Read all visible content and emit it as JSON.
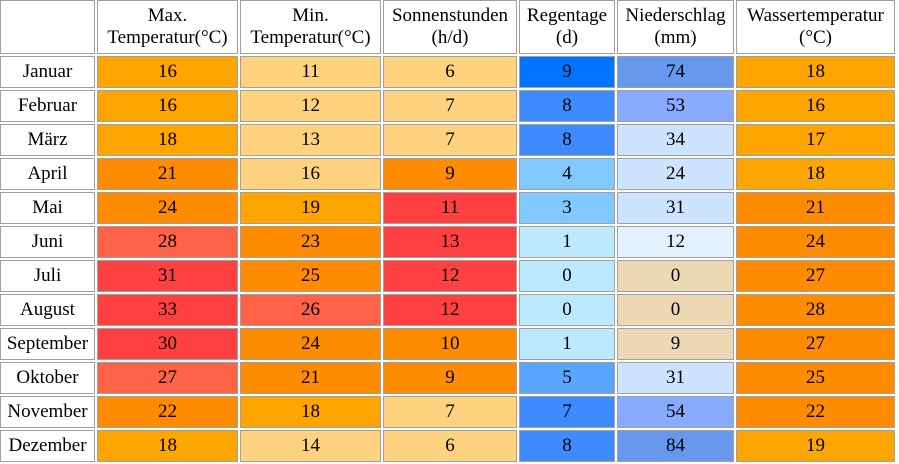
{
  "table": {
    "headers": [
      {
        "line1": "Max.",
        "line2": "Temperatur(°C)"
      },
      {
        "line1": "Min.",
        "line2": "Temperatur(°C)"
      },
      {
        "line1": "Sonnenstunden",
        "line2": "(h/d)"
      },
      {
        "line1": "Regentage",
        "line2": "(d)"
      },
      {
        "line1": "Niederschlag",
        "line2": "(mm)"
      },
      {
        "line1": "Wassertemperatur",
        "line2": "(°C)"
      }
    ],
    "rows": [
      {
        "month": "Januar",
        "cells": [
          {
            "v": "16",
            "c": "#ffa500"
          },
          {
            "v": "11",
            "c": "#ffd27f"
          },
          {
            "v": "6",
            "c": "#ffd27f"
          },
          {
            "v": "9",
            "c": "#0073ff"
          },
          {
            "v": "74",
            "c": "#6699ee"
          },
          {
            "v": "18",
            "c": "#ffa500"
          }
        ]
      },
      {
        "month": "Februar",
        "cells": [
          {
            "v": "16",
            "c": "#ffa500"
          },
          {
            "v": "12",
            "c": "#ffd27f"
          },
          {
            "v": "7",
            "c": "#ffd27f"
          },
          {
            "v": "8",
            "c": "#3d8bff"
          },
          {
            "v": "53",
            "c": "#88aaff"
          },
          {
            "v": "16",
            "c": "#ffa500"
          }
        ]
      },
      {
        "month": "März",
        "cells": [
          {
            "v": "18",
            "c": "#ffa500"
          },
          {
            "v": "13",
            "c": "#ffd27f"
          },
          {
            "v": "7",
            "c": "#ffd27f"
          },
          {
            "v": "8",
            "c": "#3d8bff"
          },
          {
            "v": "34",
            "c": "#cce4ff"
          },
          {
            "v": "17",
            "c": "#ffa500"
          }
        ]
      },
      {
        "month": "April",
        "cells": [
          {
            "v": "21",
            "c": "#ff8c00"
          },
          {
            "v": "16",
            "c": "#ffd27f"
          },
          {
            "v": "9",
            "c": "#ff8c00"
          },
          {
            "v": "4",
            "c": "#80c8ff"
          },
          {
            "v": "24",
            "c": "#cce4ff"
          },
          {
            "v": "18",
            "c": "#ffa500"
          }
        ]
      },
      {
        "month": "Mai",
        "cells": [
          {
            "v": "24",
            "c": "#ff8c00"
          },
          {
            "v": "19",
            "c": "#ffa500"
          },
          {
            "v": "11",
            "c": "#ff4040"
          },
          {
            "v": "3",
            "c": "#80c8ff"
          },
          {
            "v": "31",
            "c": "#cce4ff"
          },
          {
            "v": "21",
            "c": "#ff8c00"
          }
        ]
      },
      {
        "month": "Juni",
        "cells": [
          {
            "v": "28",
            "c": "#ff6347"
          },
          {
            "v": "23",
            "c": "#ff8c00"
          },
          {
            "v": "13",
            "c": "#ff4040"
          },
          {
            "v": "1",
            "c": "#bde9ff"
          },
          {
            "v": "12",
            "c": "#e3f1ff"
          },
          {
            "v": "24",
            "c": "#ff8c00"
          }
        ]
      },
      {
        "month": "Juli",
        "cells": [
          {
            "v": "31",
            "c": "#ff4040"
          },
          {
            "v": "25",
            "c": "#ff8c00"
          },
          {
            "v": "12",
            "c": "#ff4040"
          },
          {
            "v": "0",
            "c": "#bde9ff"
          },
          {
            "v": "0",
            "c": "#ecd8b4"
          },
          {
            "v": "27",
            "c": "#ff8c00"
          }
        ]
      },
      {
        "month": "August",
        "cells": [
          {
            "v": "33",
            "c": "#ff4040"
          },
          {
            "v": "26",
            "c": "#ff6347"
          },
          {
            "v": "12",
            "c": "#ff4040"
          },
          {
            "v": "0",
            "c": "#bde9ff"
          },
          {
            "v": "0",
            "c": "#ecd8b4"
          },
          {
            "v": "28",
            "c": "#ff8c00"
          }
        ]
      },
      {
        "month": "September",
        "cells": [
          {
            "v": "30",
            "c": "#ff4040"
          },
          {
            "v": "24",
            "c": "#ff8c00"
          },
          {
            "v": "10",
            "c": "#ff8c00"
          },
          {
            "v": "1",
            "c": "#bde9ff"
          },
          {
            "v": "9",
            "c": "#ecd8b4"
          },
          {
            "v": "27",
            "c": "#ff8c00"
          }
        ]
      },
      {
        "month": "Oktober",
        "cells": [
          {
            "v": "27",
            "c": "#ff6347"
          },
          {
            "v": "21",
            "c": "#ff8c00"
          },
          {
            "v": "9",
            "c": "#ff8c00"
          },
          {
            "v": "5",
            "c": "#5aa5ff"
          },
          {
            "v": "31",
            "c": "#cce4ff"
          },
          {
            "v": "25",
            "c": "#ff8c00"
          }
        ]
      },
      {
        "month": "November",
        "cells": [
          {
            "v": "22",
            "c": "#ff8c00"
          },
          {
            "v": "18",
            "c": "#ffa500"
          },
          {
            "v": "7",
            "c": "#ffd27f"
          },
          {
            "v": "7",
            "c": "#3d8bff"
          },
          {
            "v": "54",
            "c": "#88aaff"
          },
          {
            "v": "22",
            "c": "#ff8c00"
          }
        ]
      },
      {
        "month": "Dezember",
        "cells": [
          {
            "v": "18",
            "c": "#ffa500"
          },
          {
            "v": "14",
            "c": "#ffd27f"
          },
          {
            "v": "6",
            "c": "#ffd27f"
          },
          {
            "v": "8",
            "c": "#3d8bff"
          },
          {
            "v": "84",
            "c": "#6699ee"
          },
          {
            "v": "19",
            "c": "#ffa500"
          }
        ]
      }
    ]
  }
}
